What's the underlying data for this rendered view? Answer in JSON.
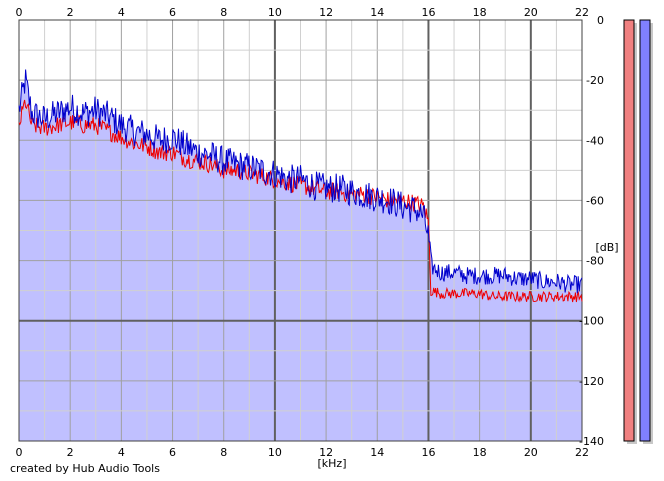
{
  "chart_data": {
    "type": "area",
    "xlabel": "[kHz]",
    "ylabel": "[dB]",
    "xlim": [
      0,
      22
    ],
    "ylim": [
      -140,
      0
    ],
    "x_ticks": [
      0,
      2,
      4,
      6,
      8,
      10,
      12,
      14,
      16,
      18,
      20,
      22
    ],
    "y_ticks": [
      0,
      -20,
      -40,
      -60,
      -80,
      -100,
      -120,
      -140
    ],
    "grid": true,
    "series": [
      {
        "color": "#0000cc",
        "fill": "#c0c0ff",
        "x": [
          0,
          0.25,
          0.5,
          1,
          1.5,
          2,
          2.5,
          3,
          3.5,
          4,
          4.5,
          5,
          5.5,
          6,
          6.5,
          7,
          7.5,
          8,
          8.5,
          9,
          9.5,
          10,
          10.5,
          11,
          11.5,
          12,
          12.5,
          13,
          13.5,
          14,
          14.5,
          15,
          15.5,
          15.8,
          16,
          16.1,
          16.5,
          17,
          17.5,
          18,
          18.5,
          19,
          19.5,
          20,
          20.5,
          21,
          21.5,
          22
        ],
        "values": [
          -30,
          -20,
          -31,
          -33,
          -31,
          -29,
          -31,
          -30,
          -32,
          -35,
          -37,
          -38,
          -40,
          -39,
          -42,
          -44,
          -45,
          -47,
          -48,
          -49,
          -50,
          -51,
          -53,
          -53,
          -55,
          -56,
          -56,
          -57,
          -58,
          -59,
          -60,
          -62,
          -63,
          -65,
          -72,
          -82,
          -84,
          -84,
          -85,
          -85,
          -85,
          -85,
          -86,
          -86,
          -87,
          -87,
          -88,
          -88
        ]
      },
      {
        "color": "#ee0000",
        "x": [
          0,
          0.25,
          0.5,
          1,
          1.5,
          2,
          2.5,
          3,
          3.5,
          4,
          4.5,
          5,
          5.5,
          6,
          6.5,
          7,
          7.5,
          8,
          8.5,
          9,
          9.5,
          10,
          10.5,
          11,
          11.5,
          12,
          12.5,
          13,
          13.5,
          14,
          14.5,
          15,
          15.5,
          15.8,
          16,
          16.1,
          16.5,
          17,
          17.5,
          18,
          18.5,
          19,
          19.5,
          20,
          20.5,
          21,
          21.5,
          22
        ],
        "values": [
          -35,
          -27,
          -35,
          -36,
          -35,
          -34,
          -35,
          -35,
          -37,
          -39,
          -41,
          -42,
          -44,
          -44,
          -46,
          -47,
          -48,
          -50,
          -50,
          -51,
          -52,
          -53,
          -54,
          -55,
          -56,
          -57,
          -57,
          -58,
          -58,
          -59,
          -60,
          -60,
          -61,
          -62,
          -67,
          -90,
          -91,
          -91,
          -91,
          -91,
          -92,
          -92,
          -92,
          -92,
          -92,
          -92,
          -92,
          -92
        ]
      }
    ]
  },
  "meter": {
    "left_color": "#f08080",
    "right_color": "#8080ff"
  },
  "credit": "created by Hub Audio Tools"
}
